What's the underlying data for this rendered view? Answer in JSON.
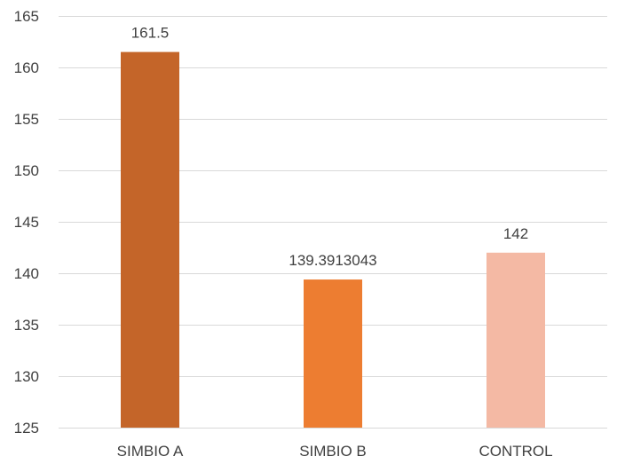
{
  "chart_data": {
    "type": "bar",
    "categories": [
      "SIMBIO A",
      "SIMBIO B",
      "CONTROL"
    ],
    "values": [
      161.5,
      139.3913043,
      142
    ],
    "data_labels": [
      "161.5",
      "139.3913043",
      "142"
    ],
    "colors": [
      "#c46529",
      "#ed7d31",
      "#f4b9a4"
    ],
    "title": "",
    "xlabel": "",
    "ylabel": "",
    "ylim": [
      125,
      165
    ],
    "yticks": [
      125,
      130,
      135,
      140,
      145,
      150,
      155,
      160,
      165
    ],
    "ytick_labels": [
      "125",
      "130",
      "135",
      "140",
      "145",
      "150",
      "155",
      "160",
      "165"
    ],
    "grid": true,
    "legend": "none"
  }
}
